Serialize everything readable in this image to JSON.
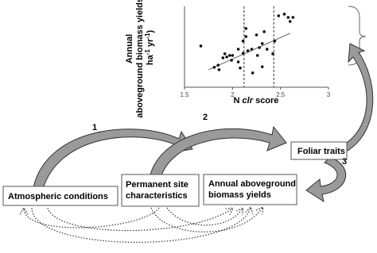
{
  "scatter": {
    "x_label": [
      "N ",
      "clr",
      " score"
    ],
    "y_label": {
      "lines": [
        "Annual",
        "aboveground biomass yields (Mg"
      ],
      "last": [
        "ha",
        "-1",
        " yr",
        "-1",
        ")"
      ]
    },
    "xlim": [
      1.5,
      3
    ],
    "xticks": [
      1.5,
      2,
      2.5,
      3
    ],
    "ylim": [
      0,
      30
    ],
    "x": [
      1.67,
      1.81,
      1.85,
      1.86,
      1.9,
      1.92,
      1.94,
      1.97,
      1.99,
      2.0,
      2.06,
      2.06,
      2.08,
      2.11,
      2.11,
      2.14,
      2.14,
      2.16,
      2.2,
      2.21,
      2.25,
      2.26,
      2.28,
      2.31,
      2.31,
      2.33,
      2.36,
      2.44,
      2.42,
      2.48,
      2.54,
      2.58,
      2.6,
      2.63
    ],
    "y": [
      15.3,
      7.4,
      8.2,
      6.5,
      10.9,
      12.4,
      11.2,
      11.8,
      10,
      11.8,
      9.4,
      14.1,
      7.1,
      12.6,
      17.1,
      18.8,
      21.8,
      13.5,
      14.1,
      5.3,
      19.4,
      11.8,
      14.7,
      16.2,
      7.6,
      20.6,
      14.1,
      17.1,
      12.4,
      26.5,
      27.1,
      25.9,
      24.4,
      25.9
    ],
    "vlines": [
      2.12,
      2.43
    ],
    "trend_x": [
      1.75,
      2.6
    ],
    "trend_y": [
      6.5,
      20
    ]
  },
  "nodes": [
    {
      "label": [
        "Atmospheric conditions"
      ]
    },
    {
      "label": [
        "Permanent site",
        "characteristics"
      ]
    },
    {
      "label": [
        "Annual aboveground",
        "biomass yields"
      ]
    },
    {
      "label": [
        "Foliar traits"
      ]
    }
  ],
  "steps": [
    "1",
    "2",
    "3"
  ]
}
